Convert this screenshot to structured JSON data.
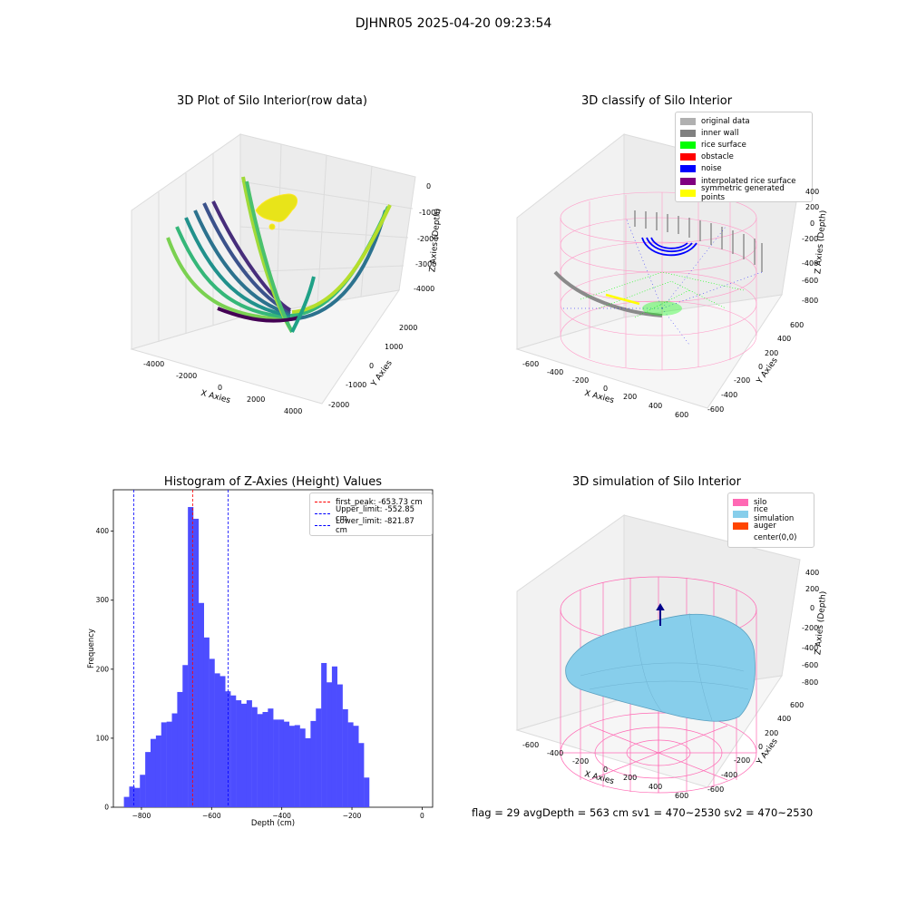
{
  "suptitle": "DJHNR05 2025-04-20 09:23:54",
  "footer": "flag = 29  avgDepth = 563 cm  sv1 = 470~2530  sv2 = 470~2530",
  "colors": {
    "original": "#b0b0b0",
    "inner_wall": "#808080",
    "rice_surface": "#00ff00",
    "obstacle": "#ff0000",
    "noise": "#0000ff",
    "interp": "#800080",
    "symmetric": "#ffff00",
    "silo": "#ff69b4",
    "rice_sim": "#87ceeb",
    "auger": "#ff4500",
    "hist_bar": "#4d4dff"
  },
  "panels": {
    "raw": {
      "title": "3D Plot of Silo Interior(row data)",
      "xlabel": "X Axies",
      "ylabel": "Y Axies",
      "zlabel": "Z Axies (Depth)",
      "xticks": [
        "-4000",
        "-2000",
        "0",
        "2000",
        "4000"
      ],
      "yticks": [
        "-2000",
        "-1000",
        "0",
        "1000",
        "2000"
      ],
      "zticks": [
        "0",
        "-1000",
        "-2000",
        "-3000",
        "-4000"
      ]
    },
    "classify": {
      "title": "3D classify of Silo Interior",
      "xlabel": "X Axies",
      "ylabel": "Y Axies",
      "zlabel": "Z Axies (Depth)",
      "xticks": [
        "-600",
        "-400",
        "-200",
        "0",
        "200",
        "400",
        "600"
      ],
      "yticks": [
        "-600",
        "-400",
        "-200",
        "0",
        "200",
        "400",
        "600"
      ],
      "zticks": [
        "400",
        "200",
        "0",
        "-200",
        "-400",
        "-600",
        "-800"
      ],
      "legend": [
        {
          "label": "original data",
          "color": "#b0b0b0"
        },
        {
          "label": "inner wall",
          "color": "#808080"
        },
        {
          "label": "rice surface",
          "color": "#00ff00"
        },
        {
          "label": "obstacle",
          "color": "#ff0000"
        },
        {
          "label": "noise",
          "color": "#0000ff"
        },
        {
          "label": "interpolated rice surface",
          "color": "#800080"
        },
        {
          "label": "symmetric generated points",
          "color": "#ffff00"
        }
      ]
    },
    "simulation": {
      "title": "3D simulation of Silo Interior",
      "xlabel": "X Axies",
      "ylabel": "Y Axies",
      "zlabel": "Z Axies (Depth)",
      "xticks": [
        "-600",
        "-400",
        "-200",
        "0",
        "200",
        "400",
        "600"
      ],
      "yticks": [
        "-600",
        "-400",
        "-200",
        "0",
        "200",
        "400",
        "600"
      ],
      "zticks": [
        "400",
        "200",
        "0",
        "-200",
        "-400",
        "-600",
        "-800"
      ],
      "legend": [
        {
          "label": "silo",
          "color": "#ff69b4"
        },
        {
          "label": "rice simulation",
          "color": "#87ceeb"
        },
        {
          "label": "auger",
          "color": "#ff4500"
        },
        {
          "label": "center(0,0)",
          "color": ""
        }
      ]
    }
  },
  "chart_data": {
    "type": "bar",
    "title": "Histogram of Z-Axies (Height) Values",
    "xlabel": "Depth (cm)",
    "ylabel": "Frequency",
    "xlim": [
      -880,
      30
    ],
    "ylim": [
      0,
      460
    ],
    "xticks": [
      -800,
      -600,
      -400,
      -200,
      0
    ],
    "yticks": [
      0,
      100,
      200,
      300,
      400
    ],
    "bin_start": -850,
    "bin_width": 15.2,
    "values": [
      15,
      30,
      28,
      47,
      80,
      99,
      104,
      123,
      124,
      136,
      167,
      206,
      435,
      418,
      296,
      246,
      215,
      194,
      190,
      168,
      162,
      155,
      150,
      155,
      145,
      135,
      138,
      143,
      127,
      127,
      124,
      118,
      119,
      114,
      100,
      125,
      143,
      209,
      181,
      204,
      178,
      142,
      123,
      118,
      93,
      43
    ],
    "vlines": [
      {
        "label": "first_peak: -653.73 cm",
        "x": -653.73,
        "color": "#ff0000"
      },
      {
        "label": "Upper_limit: -552.85 cm",
        "x": -552.85,
        "color": "#0000ff"
      },
      {
        "label": "Lower_limit: -821.87 cm",
        "x": -821.87,
        "color": "#0000ff"
      }
    ]
  }
}
